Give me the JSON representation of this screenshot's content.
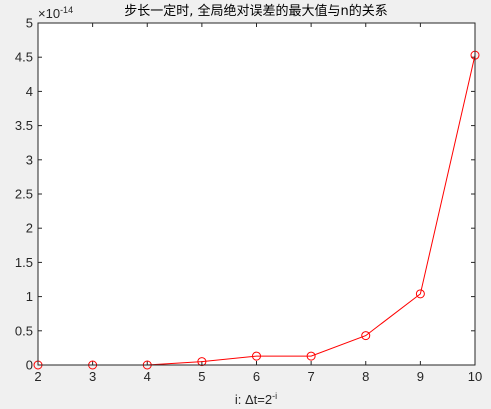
{
  "chart_data": {
    "type": "line",
    "title": "步长一定时, 全局绝对误差的最大值与n的关系",
    "xlabel_prefix": "i: ",
    "xlabel_main": "Δt=2",
    "xlabel_sup": "-i",
    "ylabel": "",
    "exponent_base": "×10",
    "exponent_power": "-14",
    "xlim": [
      2,
      10
    ],
    "ylim": [
      0,
      5
    ],
    "xticks": [
      2,
      3,
      4,
      5,
      6,
      7,
      8,
      9,
      10
    ],
    "xtick_labels": [
      "2",
      "3",
      "4",
      "5",
      "6",
      "7",
      "8",
      "9",
      "10"
    ],
    "yticks": [
      0,
      0.5,
      1,
      1.5,
      2,
      2.5,
      3,
      3.5,
      4,
      4.5,
      5
    ],
    "ytick_labels": [
      "0",
      "0.5",
      "1",
      "1.5",
      "2",
      "2.5",
      "3",
      "3.5",
      "4",
      "4.5",
      "5"
    ],
    "grid": false,
    "series": [
      {
        "color": "#ff0000",
        "marker": "circle",
        "x": [
          2,
          3,
          4,
          5,
          6,
          7,
          8,
          9,
          10
        ],
        "y": [
          0.0,
          0.0,
          0.0,
          0.05,
          0.13,
          0.13,
          0.43,
          1.04,
          4.53
        ]
      }
    ]
  }
}
